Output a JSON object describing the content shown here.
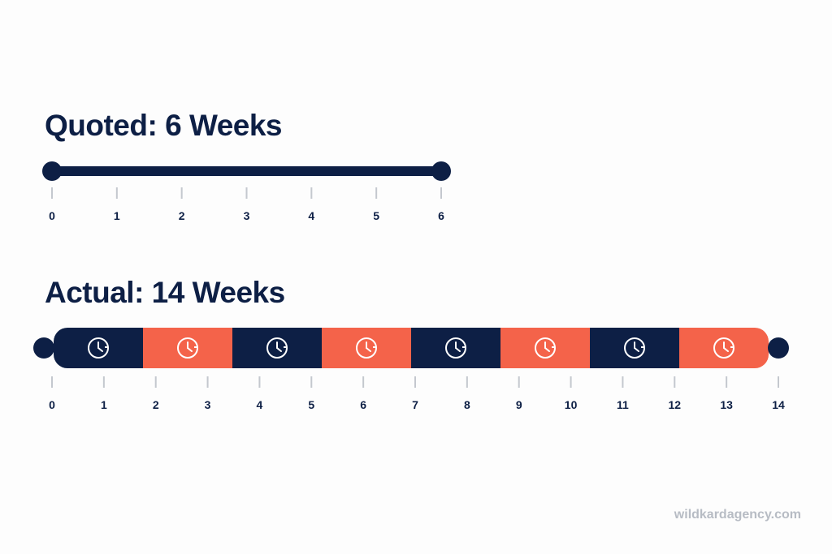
{
  "quoted": {
    "title": "Quoted: 6 Weeks",
    "ticks": [
      "0",
      "1",
      "2",
      "3",
      "4",
      "5",
      "6"
    ]
  },
  "actual": {
    "title": "Actual: 14 Weeks",
    "ticks": [
      "0",
      "1",
      "2",
      "3",
      "4",
      "5",
      "6",
      "7",
      "8",
      "9",
      "10",
      "11",
      "12",
      "13",
      "14"
    ],
    "segments": 8,
    "segment_colors": [
      "navy",
      "orange",
      "navy",
      "orange",
      "navy",
      "orange",
      "navy",
      "orange"
    ]
  },
  "colors": {
    "navy": "#0d1f45",
    "orange": "#f4634a",
    "tick": "#c4c8ce",
    "icon": "#ffffff"
  },
  "icons": {
    "segment": "clock-icon"
  },
  "watermark": "wildkardagency.com"
}
